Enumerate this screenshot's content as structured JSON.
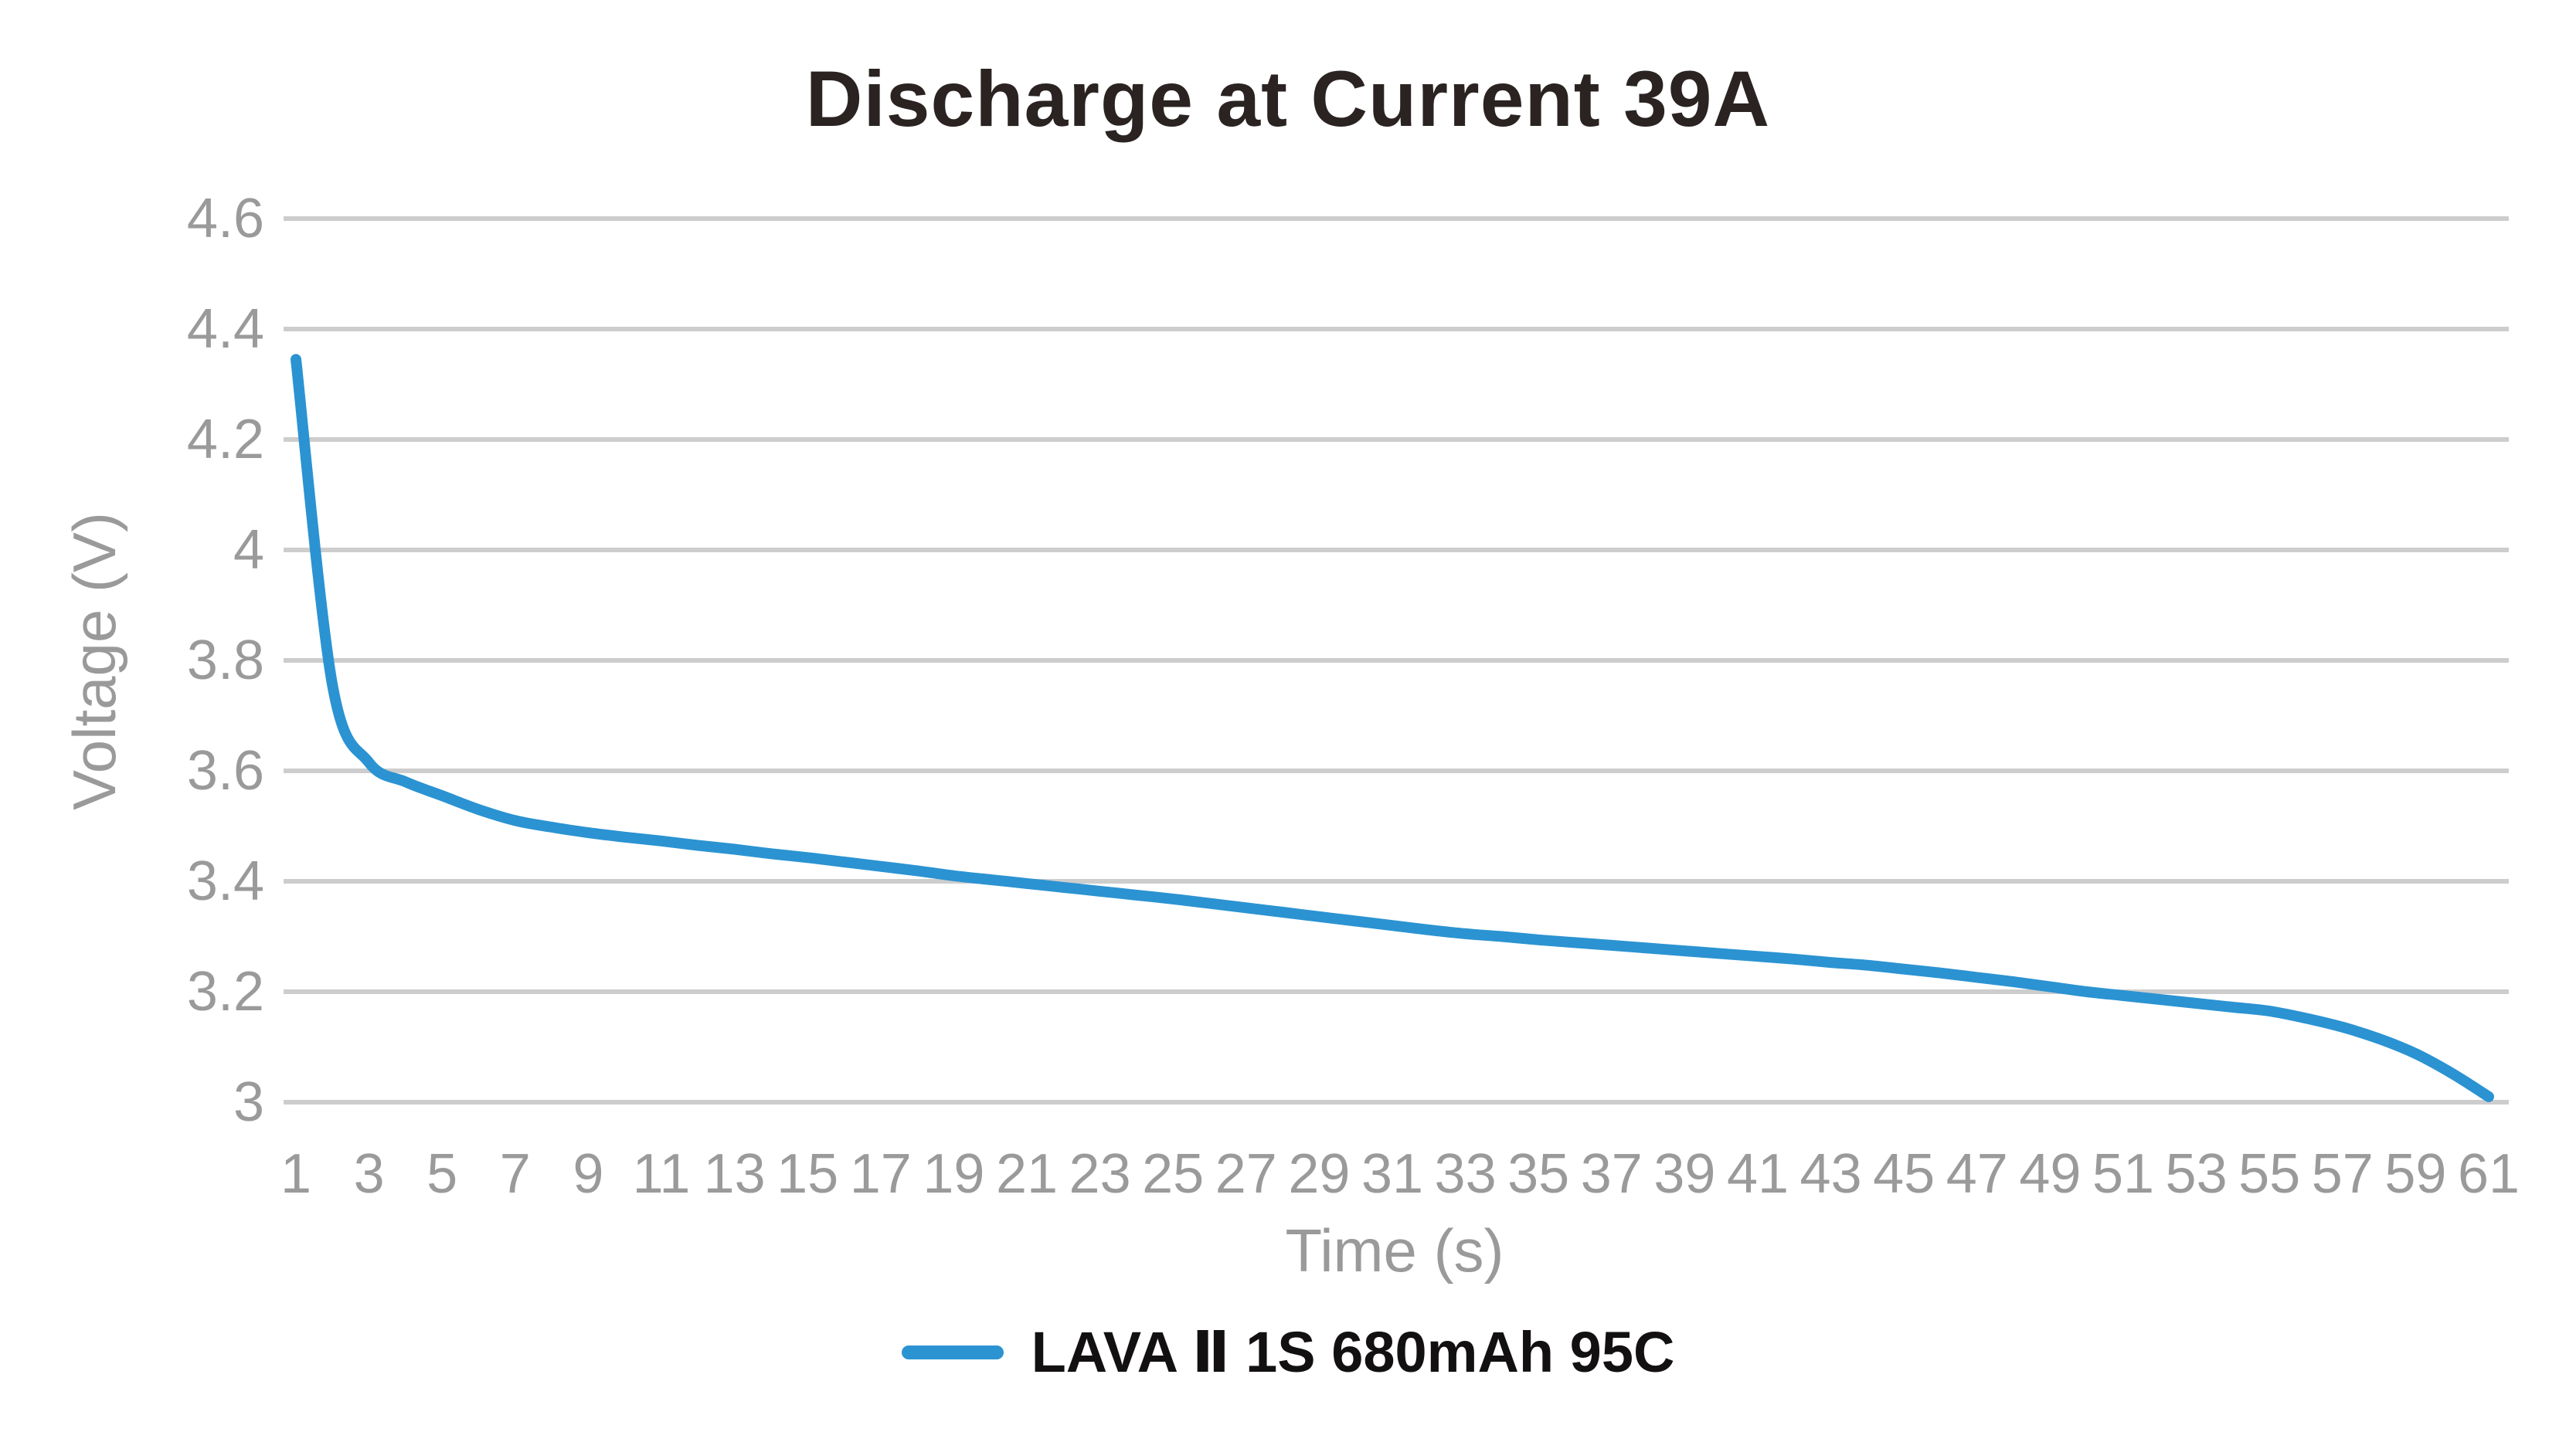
{
  "colors": {
    "accent": "#2B93D2",
    "grid": "#CDCDCD",
    "tick_text": "#9A9A9A",
    "title_text": "#2A2322",
    "legend_text": "#131011",
    "background": "#FFFFFF"
  },
  "chart_data": {
    "type": "line",
    "title": "Discharge at Current 39A",
    "xlabel": "Time (s)",
    "ylabel": "Voltage (V)",
    "xlim": [
      1,
      61
    ],
    "ylim": [
      3,
      4.6
    ],
    "x_ticks": [
      1,
      3,
      5,
      7,
      9,
      11,
      13,
      15,
      17,
      19,
      21,
      23,
      25,
      27,
      29,
      31,
      33,
      35,
      37,
      39,
      41,
      43,
      45,
      47,
      49,
      51,
      53,
      55,
      57,
      59,
      61
    ],
    "y_ticks": [
      4.6,
      4.4,
      4.2,
      4,
      3.8,
      3.6,
      3.4,
      3.2,
      3
    ],
    "grid": "horizontal",
    "legend_position": "bottom",
    "series": [
      {
        "name": "LAVA Ⅱ 1S 680mAh 95C",
        "color": "#2B93D2",
        "x": [
          1,
          2,
          3,
          4,
          5,
          6,
          7,
          8,
          9,
          10,
          11,
          12,
          13,
          14,
          15,
          16,
          17,
          18,
          19,
          20,
          21,
          22,
          23,
          24,
          25,
          26,
          27,
          28,
          29,
          30,
          31,
          32,
          33,
          34,
          35,
          36,
          37,
          38,
          39,
          40,
          41,
          42,
          43,
          44,
          45,
          46,
          47,
          48,
          49,
          50,
          51,
          52,
          53,
          54,
          55,
          56,
          57,
          58,
          59,
          60,
          61
        ],
        "y": [
          4.345,
          3.755,
          3.615,
          3.58,
          3.555,
          3.53,
          3.51,
          3.498,
          3.488,
          3.48,
          3.473,
          3.465,
          3.458,
          3.45,
          3.443,
          3.435,
          3.427,
          3.419,
          3.41,
          3.403,
          3.396,
          3.389,
          3.382,
          3.375,
          3.368,
          3.36,
          3.352,
          3.344,
          3.336,
          3.328,
          3.32,
          3.312,
          3.305,
          3.3,
          3.294,
          3.289,
          3.284,
          3.279,
          3.274,
          3.269,
          3.264,
          3.259,
          3.253,
          3.248,
          3.241,
          3.234,
          3.226,
          3.218,
          3.209,
          3.2,
          3.193,
          3.186,
          3.179,
          3.172,
          3.165,
          3.152,
          3.136,
          3.115,
          3.088,
          3.052,
          3.01
        ]
      }
    ]
  }
}
